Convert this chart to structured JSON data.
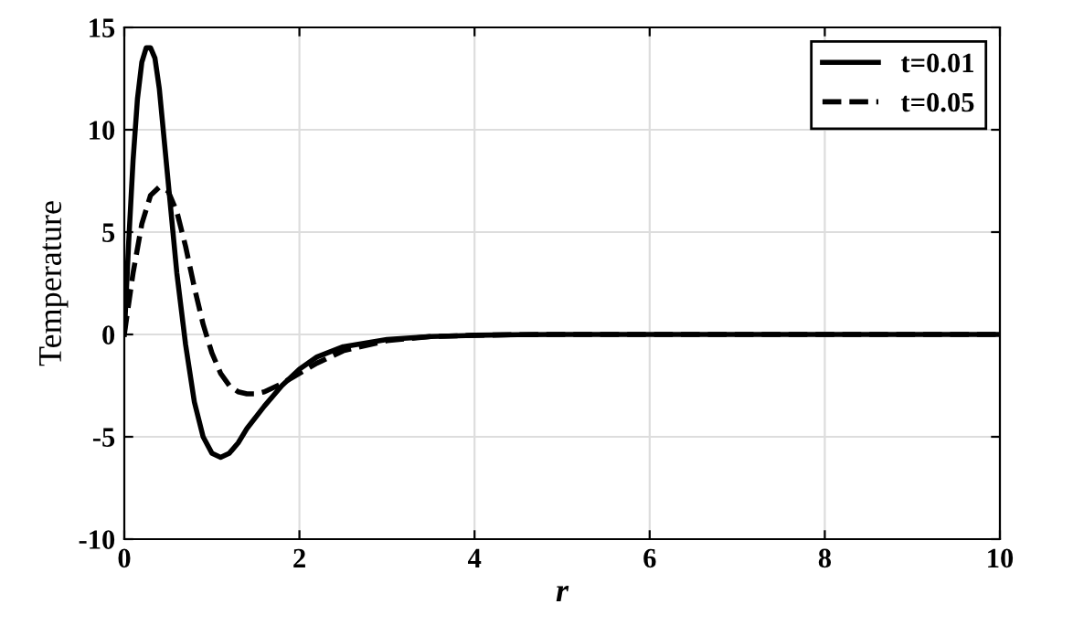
{
  "chart_data": {
    "type": "line",
    "xlabel": "r",
    "ylabel": "Temperature",
    "xlim": [
      0,
      10
    ],
    "ylim": [
      -10,
      15
    ],
    "xticks": [
      0,
      2,
      4,
      6,
      8,
      10
    ],
    "yticks": [
      -10,
      -5,
      0,
      5,
      10,
      15
    ],
    "grid": true,
    "legend": "top right",
    "marker": "none",
    "series": [
      {
        "name": "t=0.01",
        "color": "#000000",
        "line_style": "solid",
        "x": [
          0,
          0.05,
          0.1,
          0.15,
          0.2,
          0.25,
          0.3,
          0.35,
          0.4,
          0.5,
          0.6,
          0.7,
          0.8,
          0.9,
          1.0,
          1.1,
          1.2,
          1.3,
          1.4,
          1.6,
          1.8,
          2.0,
          2.2,
          2.5,
          3.0,
          3.5,
          4.0,
          4.5,
          5,
          6,
          7,
          8,
          9,
          10
        ],
        "values": [
          0,
          4.5,
          8.5,
          11.5,
          13.3,
          14,
          14,
          13.5,
          12,
          7.5,
          3,
          -0.5,
          -3.3,
          -5,
          -5.8,
          -6,
          -5.8,
          -5.3,
          -4.6,
          -3.5,
          -2.5,
          -1.7,
          -1.1,
          -0.6,
          -0.25,
          -0.1,
          -0.04,
          -0.01,
          0,
          0,
          0,
          0,
          0,
          0
        ]
      },
      {
        "name": "t=0.05",
        "color": "#000000",
        "line_style": "dashed",
        "x": [
          0,
          0.1,
          0.2,
          0.3,
          0.4,
          0.5,
          0.6,
          0.7,
          0.8,
          0.9,
          1.0,
          1.1,
          1.2,
          1.3,
          1.4,
          1.5,
          1.6,
          1.8,
          2.0,
          2.2,
          2.5,
          3.0,
          3.5,
          4.0,
          4.5,
          5,
          6,
          7,
          8,
          9,
          10
        ],
        "values": [
          0,
          3,
          5.4,
          6.8,
          7.2,
          7,
          6,
          4.3,
          2.3,
          0.5,
          -0.9,
          -1.9,
          -2.5,
          -2.8,
          -2.9,
          -2.9,
          -2.8,
          -2.4,
          -1.9,
          -1.4,
          -0.8,
          -0.3,
          -0.1,
          -0.04,
          -0.01,
          0,
          0,
          0,
          0,
          0,
          0
        ]
      }
    ]
  }
}
